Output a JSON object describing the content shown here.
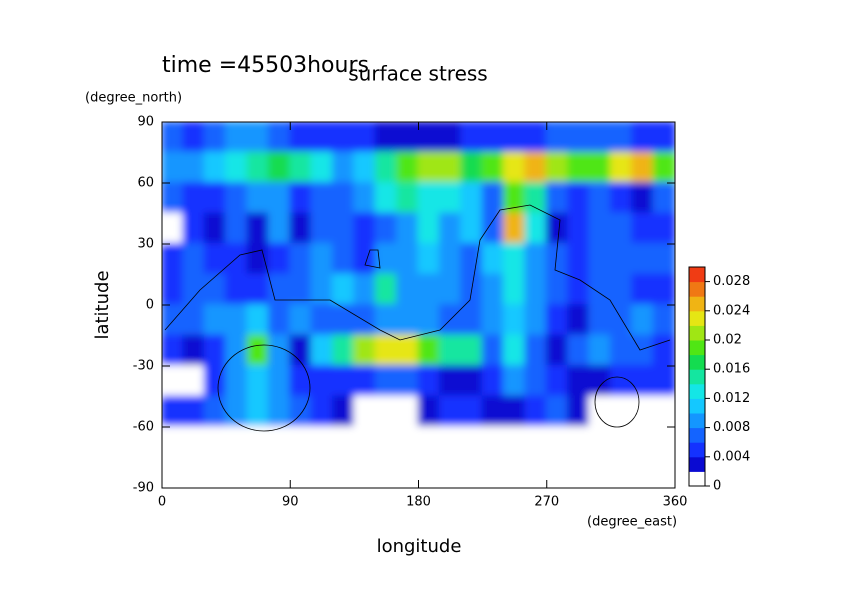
{
  "chart_data": {
    "type": "contour",
    "title": "surface stress",
    "subtitle": "time =45503hours",
    "x_label": "longitude",
    "x_unit": "(degree_east)",
    "y_label": "latitude",
    "y_unit": "(degree_north)",
    "x": [
      7.5,
      22.5,
      37.5,
      52.5,
      67.5,
      82.5,
      97.5,
      112.5,
      127.5,
      142.5,
      157.5,
      172.5,
      187.5,
      202.5,
      217.5,
      232.5,
      247.5,
      262.5,
      277.5,
      292.5,
      307.5,
      322.5,
      337.5,
      352.5
    ],
    "y": [
      82.5,
      67.5,
      52.5,
      37.5,
      22.5,
      7.5,
      -7.5,
      -22.5,
      -37.5,
      -52.5,
      -67.5,
      -82.5
    ],
    "z": [
      [
        0.006,
        0.005,
        0.006,
        0.008,
        0.008,
        0.006,
        0.005,
        0.005,
        0.004,
        0.004,
        0.003,
        0.003,
        0.003,
        0.003,
        0.004,
        0.004,
        0.005,
        0.005,
        0.006,
        0.006,
        0.006,
        0.006,
        0.005,
        0.005
      ],
      [
        0.008,
        0.008,
        0.01,
        0.012,
        0.014,
        0.016,
        0.014,
        0.012,
        0.008,
        0.01,
        0.014,
        0.018,
        0.02,
        0.02,
        0.016,
        0.018,
        0.022,
        0.024,
        0.02,
        0.018,
        0.018,
        0.022,
        0.024,
        0.018
      ],
      [
        0.006,
        0.004,
        0.004,
        0.006,
        0.008,
        0.008,
        0.004,
        0.006,
        0.006,
        0.008,
        0.012,
        0.014,
        0.012,
        0.012,
        0.01,
        0.006,
        0.018,
        0.014,
        0.006,
        0.004,
        0.006,
        0.004,
        0.002,
        0.006
      ],
      [
        0,
        0.004,
        0.002,
        0.006,
        0.002,
        0.008,
        0.002,
        0.006,
        0.006,
        0.004,
        0.006,
        0.008,
        0.012,
        0.008,
        0.01,
        0.006,
        0.024,
        0.012,
        0.002,
        0.004,
        0.006,
        0.006,
        0.004,
        0.004
      ],
      [
        0.004,
        0.006,
        0.004,
        0.004,
        0.002,
        0.004,
        0.006,
        0.008,
        0.006,
        0.004,
        0.008,
        0.008,
        0.01,
        0.008,
        0.006,
        0.01,
        0.012,
        0.008,
        0.006,
        0.004,
        0.006,
        0.006,
        0.006,
        0.006
      ],
      [
        0.004,
        0.006,
        0.006,
        0.004,
        0.004,
        0.006,
        0.006,
        0.008,
        0.01,
        0.008,
        0.014,
        0.008,
        0.008,
        0.008,
        0.006,
        0.008,
        0.012,
        0.008,
        0.006,
        0.004,
        0.006,
        0.006,
        0.004,
        0.004
      ],
      [
        0.006,
        0.006,
        0.008,
        0.008,
        0.01,
        0.006,
        0.008,
        0.006,
        0.006,
        0.006,
        0.008,
        0.008,
        0.008,
        0.006,
        0.006,
        0.008,
        0.01,
        0.008,
        0.004,
        0.002,
        0.006,
        0.006,
        0.008,
        0.006
      ],
      [
        0.004,
        0.002,
        0.004,
        0.008,
        0.018,
        0.008,
        0.002,
        0.01,
        0.014,
        0.02,
        0.022,
        0.022,
        0.018,
        0.014,
        0.014,
        0.006,
        0.012,
        0.006,
        0.002,
        0.006,
        0.008,
        0.006,
        0.006,
        0.004
      ],
      [
        0,
        0,
        0.004,
        0.008,
        0.01,
        0.008,
        0.004,
        0.004,
        0.004,
        0.004,
        0.006,
        0.006,
        0.004,
        0.002,
        0.002,
        0.004,
        0.008,
        0.006,
        0.004,
        0.002,
        0.002,
        0.004,
        0.004,
        0.004
      ],
      [
        0.004,
        0.004,
        0.006,
        0.008,
        0.01,
        0.008,
        0.006,
        0.004,
        0.002,
        0,
        0,
        0,
        0.002,
        0.004,
        0.004,
        0.002,
        0.002,
        0.004,
        0.006,
        0.002,
        0,
        0,
        0,
        0
      ],
      [
        0,
        0,
        0,
        0,
        0,
        0,
        0,
        0,
        0,
        0,
        0,
        0,
        0,
        0,
        0,
        0,
        0,
        0,
        0,
        0,
        0,
        0,
        0,
        0
      ],
      [
        0,
        0,
        0,
        0,
        0,
        0,
        0,
        0,
        0,
        0,
        0,
        0,
        0,
        0,
        0,
        0,
        0,
        0,
        0,
        0,
        0,
        0,
        0,
        0
      ]
    ],
    "xlim": [
      0,
      360
    ],
    "xticks": [
      0,
      90,
      180,
      270,
      360
    ],
    "ylim": [
      -90,
      90
    ],
    "yticks": [
      -90,
      -60,
      -30,
      0,
      30,
      60,
      90
    ],
    "zlim": [
      0,
      0.03
    ],
    "zticks": [
      0,
      0.004,
      0.008,
      0.012,
      0.016,
      0.02,
      0.024,
      0.028
    ],
    "colors": [
      "#ffffff",
      "#0a0ad2",
      "#1432ff",
      "#1464ff",
      "#1496ff",
      "#14c8ff",
      "#14e6e6",
      "#14e6a0",
      "#14dc50",
      "#50e614",
      "#a0e614",
      "#e6e614",
      "#f0b414",
      "#f07814",
      "#f03c14"
    ]
  }
}
